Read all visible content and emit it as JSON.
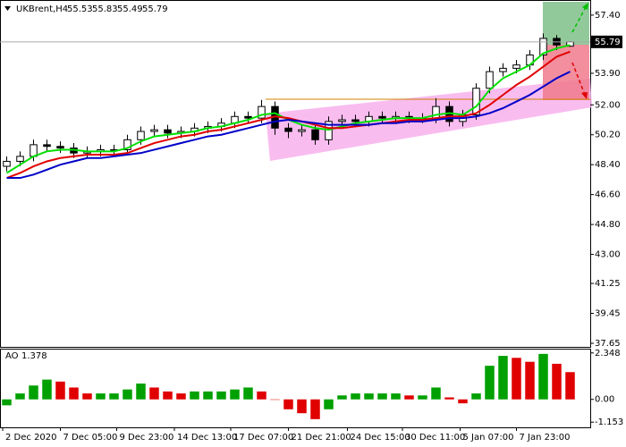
{
  "chart_data": {
    "type": "candlestick",
    "title": "UKBrent,H4",
    "open": [
      48.3,
      48.6,
      48.9,
      49.6,
      49.5,
      49.4,
      49.1,
      49.2,
      49.3,
      49.3,
      49.9,
      50.4,
      50.5,
      50.3,
      50.4,
      50.6,
      50.7,
      50.9,
      51.3,
      51.2,
      51.9,
      50.6,
      50.4,
      50.5,
      49.9,
      51.0,
      51.1,
      51.0,
      51.3,
      51.2,
      51.3,
      51.2,
      51.2,
      51.9,
      51.0,
      51.4,
      53.0,
      54.0,
      54.2,
      54.4,
      55.0,
      56.0,
      55.53
    ],
    "high": [
      48.9,
      49.2,
      49.9,
      49.9,
      49.8,
      49.7,
      49.5,
      49.6,
      49.6,
      50.2,
      50.7,
      50.8,
      50.8,
      50.7,
      50.9,
      51.0,
      51.2,
      51.6,
      51.6,
      52.3,
      52.2,
      50.9,
      50.8,
      50.8,
      51.3,
      51.4,
      51.4,
      51.6,
      51.6,
      51.6,
      51.6,
      51.5,
      52.4,
      52.2,
      51.7,
      53.3,
      54.3,
      54.5,
      54.7,
      55.3,
      56.3,
      56.2,
      55.83
    ],
    "low": [
      48.0,
      48.3,
      48.6,
      49.2,
      49.1,
      48.8,
      48.8,
      48.9,
      49.0,
      49.0,
      49.6,
      50.1,
      50.0,
      50.0,
      50.1,
      50.3,
      50.4,
      50.6,
      50.9,
      50.9,
      50.2,
      50.0,
      50.1,
      49.6,
      49.6,
      50.7,
      50.7,
      50.7,
      50.9,
      50.9,
      50.9,
      50.9,
      50.9,
      50.7,
      50.7,
      51.1,
      52.7,
      53.7,
      53.9,
      54.1,
      54.7,
      55.3,
      55.49
    ],
    "close": [
      48.6,
      48.9,
      49.6,
      49.5,
      49.4,
      49.1,
      49.2,
      49.3,
      49.3,
      49.9,
      50.4,
      50.5,
      50.3,
      50.4,
      50.6,
      50.7,
      50.9,
      51.3,
      51.2,
      51.9,
      50.6,
      50.4,
      50.5,
      49.9,
      51.0,
      51.1,
      51.0,
      51.3,
      51.2,
      51.3,
      51.2,
      51.2,
      51.9,
      51.0,
      51.4,
      53.0,
      54.0,
      54.2,
      54.4,
      55.0,
      56.0,
      55.6,
      55.79
    ],
    "candle_color": "#000000",
    "moving_averages": [
      {
        "color": "#00e000",
        "values": [
          47.9,
          48.4,
          48.9,
          49.2,
          49.3,
          49.3,
          49.2,
          49.2,
          49.2,
          49.4,
          49.8,
          50.1,
          50.2,
          50.3,
          50.4,
          50.6,
          50.7,
          50.9,
          51.1,
          51.4,
          51.5,
          51.1,
          50.8,
          50.6,
          50.5,
          50.7,
          50.9,
          51.0,
          51.1,
          51.2,
          51.2,
          51.2,
          51.4,
          51.5,
          51.4,
          51.9,
          52.9,
          53.6,
          54.0,
          54.4,
          55.1,
          55.4,
          55.6
        ]
      },
      {
        "color": "#e00000",
        "values": [
          47.6,
          47.9,
          48.3,
          48.6,
          48.8,
          48.9,
          49.0,
          49.0,
          49.0,
          49.1,
          49.4,
          49.7,
          49.9,
          50.1,
          50.2,
          50.4,
          50.5,
          50.7,
          50.9,
          51.1,
          51.3,
          51.2,
          51.0,
          50.8,
          50.6,
          50.6,
          50.7,
          50.8,
          50.9,
          51.0,
          51.1,
          51.1,
          51.2,
          51.3,
          51.3,
          51.5,
          52.0,
          52.6,
          53.2,
          53.7,
          54.3,
          54.9,
          55.2
        ]
      },
      {
        "color": "#0000c8",
        "values": [
          47.6,
          47.6,
          47.8,
          48.1,
          48.4,
          48.6,
          48.8,
          48.8,
          48.9,
          49.0,
          49.1,
          49.3,
          49.5,
          49.7,
          49.9,
          50.1,
          50.2,
          50.4,
          50.6,
          50.8,
          51.0,
          51.1,
          51.0,
          50.9,
          50.8,
          50.8,
          50.8,
          50.8,
          50.9,
          50.9,
          51.0,
          51.0,
          51.1,
          51.2,
          51.2,
          51.3,
          51.5,
          51.8,
          52.2,
          52.6,
          53.1,
          53.6,
          54.0
        ]
      }
    ],
    "xlim": [
      -0.5,
      43.5
    ],
    "xticks": [
      {
        "value": -0.3,
        "label": "2 Dec 2020"
      },
      {
        "value": 4,
        "label": "7 Dec 05:00"
      },
      {
        "value": 8.2,
        "label": "9 Dec 23:00"
      },
      {
        "value": 12.5,
        "label": "14 Dec 13:00"
      },
      {
        "value": 16.7,
        "label": "17 Dec 07:00"
      },
      {
        "value": 21,
        "label": "21 Dec 21:00"
      },
      {
        "value": 25.4,
        "label": "24 Dec 15:00"
      },
      {
        "value": 29.5,
        "label": "30 Dec 11:00"
      },
      {
        "value": 33.8,
        "label": "5 Jan 07:00"
      },
      {
        "value": 38,
        "label": "7 Jan 23:00"
      }
    ],
    "ylim": [
      37.38,
      58.31
    ],
    "yticks": [
      {
        "value": 57.4,
        "label": "57.40"
      },
      {
        "value": 53.9,
        "label": "53.90"
      },
      {
        "value": 52.0,
        "label": "52.00"
      },
      {
        "value": 50.2,
        "label": "50.20"
      },
      {
        "value": 48.4,
        "label": "48.40"
      },
      {
        "value": 46.6,
        "label": "46.60"
      },
      {
        "value": 44.8,
        "label": "44.80"
      },
      {
        "value": 43.0,
        "label": "43.00"
      },
      {
        "value": 41.25,
        "label": "41.25"
      },
      {
        "value": 39.45,
        "label": "39.45"
      },
      {
        "value": 37.65,
        "label": "37.65"
      }
    ],
    "oscillator": {
      "name": "AO",
      "up_color": "#00a000",
      "down_color": "#e00000",
      "values": [
        -0.3,
        0.3,
        0.7,
        1.0,
        0.9,
        0.6,
        0.3,
        0.3,
        0.3,
        0.5,
        0.8,
        0.6,
        0.4,
        0.3,
        0.4,
        0.4,
        0.4,
        0.5,
        0.6,
        0.4,
        0.0,
        -0.5,
        -0.7,
        -1.0,
        -0.5,
        0.2,
        0.3,
        0.3,
        0.3,
        0.3,
        0.2,
        0.2,
        0.6,
        0.1,
        -0.2,
        0.3,
        1.7,
        2.2,
        2.1,
        1.9,
        2.3,
        1.8,
        1.378
      ],
      "ylim": [
        -1.414,
        2.565
      ],
      "yticks": [
        2.348,
        {
          "value": 0,
          "label": "0.00"
        },
        -1.153
      ]
    }
  }
}
